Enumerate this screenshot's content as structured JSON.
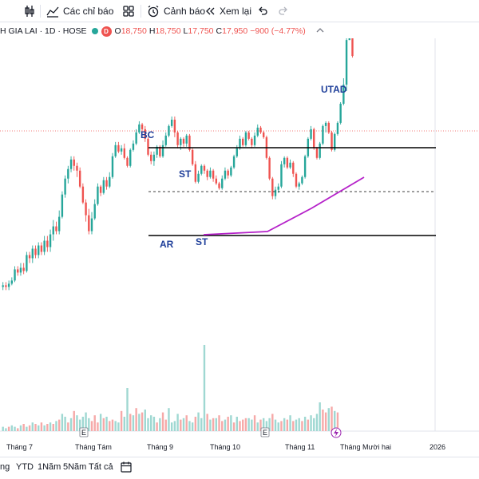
{
  "toolbar": {
    "indicators_label": "Các chỉ báo",
    "alerts_label": "Cảnh báo",
    "replay_label": "Xem lại"
  },
  "legend": {
    "symbol": "H GIA LAI · 1D · HOSE",
    "badge": "D",
    "open_key": "O",
    "open": "18,750",
    "high_key": "H",
    "high": "18,750",
    "low_key": "L",
    "low": "17,750",
    "close_key": "C",
    "close": "17,950",
    "change": "−900 (−4.77%)"
  },
  "bottombar": {
    "ranges": [
      "ng",
      "YTD",
      "1Năm",
      "5Năm",
      "Tất cả"
    ]
  },
  "chart_data": {
    "type": "candlestick",
    "x_labels": [
      "Tháng 7",
      "Tháng Tám",
      "Tháng 9",
      "Tháng 10",
      "Tháng 11",
      "Tháng Mười hai",
      "2026"
    ],
    "annotations": [
      "BC",
      "ST",
      "AR",
      "ST",
      "UTAD"
    ],
    "event_markers": [
      "E",
      "E"
    ],
    "colors": {
      "up": "#26a69a",
      "down": "#ef5350",
      "vol_up": "#9fd8d2",
      "vol_down": "#f6a9a8",
      "trend": "#b521c9"
    },
    "price_note": "approx relative units (0 = chart top, 100 = bottom); y-axis not visible",
    "candles": [
      [
        62.5,
        62,
        61,
        63.5
      ],
      [
        62,
        62.5,
        61,
        63.5
      ],
      [
        62.5,
        61.5,
        60.5,
        63.5
      ],
      [
        61.5,
        60.5,
        59.5,
        62
      ],
      [
        60.5,
        57,
        56,
        61
      ],
      [
        57,
        58,
        56,
        59
      ],
      [
        58,
        56.5,
        55,
        59
      ],
      [
        56.5,
        57.5,
        55,
        58.5
      ],
      [
        57.5,
        52.5,
        51.5,
        58
      ],
      [
        52.5,
        53.5,
        51.5,
        55
      ],
      [
        53.5,
        50.5,
        49.5,
        55
      ],
      [
        50.5,
        52.5,
        49.5,
        53.5
      ],
      [
        52.5,
        49.5,
        48.5,
        53.5
      ],
      [
        49.5,
        51.5,
        48.5,
        52.5
      ],
      [
        51.5,
        48,
        46.5,
        52.5
      ],
      [
        48,
        50,
        46.5,
        51.5
      ],
      [
        50,
        46,
        44.5,
        51.5
      ],
      [
        46,
        43.5,
        41.5,
        48
      ],
      [
        43.5,
        45,
        42,
        46
      ],
      [
        45,
        40.5,
        38.5,
        46
      ],
      [
        40.5,
        33.5,
        32.5,
        41
      ],
      [
        33.5,
        28.5,
        27.5,
        34.5
      ],
      [
        28.5,
        25.5,
        24.5,
        30
      ],
      [
        25.5,
        22.5,
        21.5,
        26.5
      ],
      [
        22.5,
        24.5,
        21.5,
        26
      ],
      [
        24.5,
        26,
        23.5,
        28
      ],
      [
        26,
        31,
        25,
        31.5
      ],
      [
        31,
        36,
        30,
        36.5
      ],
      [
        36,
        40,
        35,
        42
      ],
      [
        40,
        45,
        38,
        46
      ],
      [
        45,
        41,
        39,
        46
      ],
      [
        41,
        36.5,
        35,
        41.5
      ],
      [
        36.5,
        31,
        30,
        37
      ],
      [
        31,
        33,
        30.5,
        34
      ],
      [
        33,
        29,
        28,
        33.5
      ],
      [
        29,
        31,
        28,
        32
      ],
      [
        31,
        28,
        26.5,
        31.5
      ],
      [
        28,
        21.5,
        20.5,
        28.5
      ],
      [
        21.5,
        18,
        17,
        22
      ],
      [
        18,
        20,
        17,
        20.5
      ],
      [
        20,
        19,
        18,
        21
      ],
      [
        19,
        22,
        17.5,
        22.5
      ],
      [
        22,
        24.5,
        21.5,
        25
      ],
      [
        24.5,
        19.5,
        19,
        25
      ],
      [
        19.5,
        17.5,
        16.5,
        20
      ],
      [
        17.5,
        14,
        13,
        18
      ],
      [
        14,
        11.5,
        10.5,
        14.5
      ],
      [
        11.5,
        13,
        11,
        14
      ],
      [
        13,
        16,
        12,
        17
      ],
      [
        16,
        21,
        15.5,
        21.5
      ],
      [
        21,
        23,
        20,
        24
      ],
      [
        23,
        21,
        20,
        24.5
      ],
      [
        21,
        18.5,
        18,
        22
      ],
      [
        18.5,
        21.5,
        18,
        22
      ],
      [
        21.5,
        18,
        16.5,
        22
      ],
      [
        18,
        15,
        14,
        18.5
      ],
      [
        15,
        12,
        11.5,
        15.5
      ],
      [
        12,
        10,
        9,
        12.5
      ],
      [
        10,
        14,
        9,
        15.5
      ],
      [
        14,
        18,
        13.5,
        19
      ],
      [
        18,
        16,
        15.5,
        19.5
      ],
      [
        16,
        17.5,
        15.5,
        18.5
      ],
      [
        17.5,
        15,
        14.5,
        18.5
      ],
      [
        15,
        19.5,
        14.5,
        20
      ],
      [
        19.5,
        24,
        19,
        24.5
      ],
      [
        24,
        29.5,
        23,
        30
      ],
      [
        29.5,
        27,
        26,
        30
      ],
      [
        27,
        24.5,
        24,
        27.5
      ],
      [
        24.5,
        26,
        24,
        27
      ],
      [
        26,
        28,
        25.5,
        29
      ],
      [
        28,
        26,
        25,
        28.5
      ],
      [
        26,
        28.5,
        25.5,
        29.5
      ],
      [
        28.5,
        30,
        27.5,
        30.5
      ],
      [
        30,
        31.5,
        29.5,
        32
      ],
      [
        31.5,
        28.5,
        27.5,
        32
      ],
      [
        28.5,
        26,
        25,
        29
      ],
      [
        26,
        27.5,
        25.5,
        28.5
      ],
      [
        27.5,
        25,
        24.5,
        28
      ],
      [
        25,
        21.5,
        21,
        25.5
      ],
      [
        21.5,
        19,
        18,
        22
      ],
      [
        19,
        16,
        15,
        19.5
      ],
      [
        16,
        18,
        15.5,
        18.5
      ],
      [
        18,
        14,
        13.5,
        18.5
      ],
      [
        14,
        16,
        13.5,
        16.5
      ],
      [
        16,
        18,
        15.5,
        19
      ],
      [
        18,
        15,
        14,
        18.5
      ],
      [
        15,
        12.5,
        11.5,
        15.5
      ],
      [
        12.5,
        14,
        12,
        14.5
      ],
      [
        14,
        15.5,
        13.5,
        16
      ],
      [
        15.5,
        22,
        15,
        22.5
      ],
      [
        22,
        28.5,
        21.5,
        29
      ],
      [
        28.5,
        34,
        28,
        35
      ],
      [
        34,
        32,
        31,
        35
      ],
      [
        32,
        31,
        30,
        33
      ],
      [
        31,
        24,
        23,
        31.5
      ],
      [
        24,
        22,
        21.5,
        25
      ],
      [
        22,
        25,
        21.5,
        25.5
      ],
      [
        25,
        23.5,
        22.5,
        25.5
      ],
      [
        23.5,
        27,
        23,
        28
      ],
      [
        27,
        31,
        26.5,
        31.5
      ],
      [
        31,
        30,
        29.5,
        32
      ],
      [
        30,
        28,
        27.5,
        30.5
      ],
      [
        28,
        21.5,
        21,
        28.5
      ],
      [
        21.5,
        16,
        15.5,
        22
      ],
      [
        16,
        13,
        12,
        16.5
      ],
      [
        13,
        19,
        12.5,
        19.5
      ],
      [
        19,
        22,
        18.5,
        22.5
      ],
      [
        22,
        17.5,
        17,
        22.5
      ],
      [
        17.5,
        12,
        11.5,
        18
      ],
      [
        12,
        11,
        10.5,
        14
      ],
      [
        11,
        14,
        10.5,
        14.5
      ],
      [
        14,
        19.5,
        13.5,
        20
      ],
      [
        19.5,
        14.5,
        14,
        20
      ],
      [
        14.5,
        11,
        10.5,
        15
      ],
      [
        11,
        5,
        4.5,
        11.5
      ],
      [
        5,
        -1,
        -3,
        5.5
      ],
      [
        -1,
        -15,
        -17,
        1
      ],
      [
        -15,
        -19,
        -20,
        -15
      ],
      [
        -19,
        -10,
        -20.5,
        -9.5
      ]
    ],
    "volumes": [
      [
        3,
        1
      ],
      [
        2,
        1
      ],
      [
        3,
        0
      ],
      [
        4,
        1
      ],
      [
        3,
        1
      ],
      [
        2,
        0
      ],
      [
        4,
        1
      ],
      [
        5,
        0
      ],
      [
        3,
        1
      ],
      [
        4,
        0
      ],
      [
        6,
        1
      ],
      [
        5,
        0
      ],
      [
        4,
        1
      ],
      [
        6,
        0
      ],
      [
        4,
        1
      ],
      [
        5,
        0
      ],
      [
        6,
        1
      ],
      [
        5,
        0
      ],
      [
        7,
        1
      ],
      [
        8,
        0
      ],
      [
        12,
        1
      ],
      [
        10,
        1
      ],
      [
        6,
        0
      ],
      [
        9,
        1
      ],
      [
        14,
        0
      ],
      [
        11,
        1
      ],
      [
        8,
        1
      ],
      [
        10,
        1
      ],
      [
        13,
        1
      ],
      [
        9,
        1
      ],
      [
        7,
        0
      ],
      [
        11,
        0
      ],
      [
        6,
        0
      ],
      [
        12,
        1
      ],
      [
        9,
        0
      ],
      [
        10,
        1
      ],
      [
        7,
        0
      ],
      [
        8,
        0
      ],
      [
        7,
        1
      ],
      [
        6,
        1
      ],
      [
        14,
        0
      ],
      [
        10,
        1
      ],
      [
        30,
        1
      ],
      [
        12,
        0
      ],
      [
        11,
        1
      ],
      [
        16,
        0
      ],
      [
        12,
        1
      ],
      [
        13,
        0
      ],
      [
        15,
        1
      ],
      [
        9,
        1
      ],
      [
        11,
        1
      ],
      [
        10,
        1
      ],
      [
        6,
        0
      ],
      [
        9,
        1
      ],
      [
        13,
        0
      ],
      [
        8,
        0
      ],
      [
        16,
        1
      ],
      [
        6,
        1
      ],
      [
        7,
        1
      ],
      [
        12,
        1
      ],
      [
        8,
        0
      ],
      [
        9,
        1
      ],
      [
        11,
        0
      ],
      [
        7,
        1
      ],
      [
        6,
        1
      ],
      [
        10,
        0
      ],
      [
        13,
        1
      ],
      [
        9,
        1
      ],
      [
        60,
        1
      ],
      [
        12,
        0
      ],
      [
        8,
        1
      ],
      [
        9,
        0
      ],
      [
        9,
        1
      ],
      [
        11,
        0
      ],
      [
        7,
        0
      ],
      [
        8,
        1
      ],
      [
        10,
        0
      ],
      [
        11,
        1
      ],
      [
        6,
        0
      ],
      [
        10,
        1
      ],
      [
        7,
        0
      ],
      [
        8,
        0
      ],
      [
        9,
        0
      ],
      [
        9,
        1
      ],
      [
        8,
        1
      ],
      [
        11,
        0
      ],
      [
        6,
        1
      ],
      [
        8,
        0
      ],
      [
        9,
        1
      ],
      [
        7,
        1
      ],
      [
        9,
        1
      ],
      [
        12,
        0
      ],
      [
        8,
        1
      ],
      [
        6,
        1
      ],
      [
        7,
        0
      ],
      [
        9,
        1
      ],
      [
        8,
        0
      ],
      [
        11,
        1
      ],
      [
        7,
        0
      ],
      [
        8,
        1
      ],
      [
        9,
        1
      ],
      [
        7,
        0
      ],
      [
        10,
        1
      ],
      [
        8,
        0
      ],
      [
        11,
        1
      ],
      [
        9,
        1
      ],
      [
        12,
        1
      ],
      [
        20,
        1
      ],
      [
        15,
        0
      ],
      [
        13,
        0
      ],
      [
        16,
        1
      ],
      [
        17,
        0
      ],
      [
        14,
        1
      ],
      [
        13,
        0
      ]
    ]
  }
}
